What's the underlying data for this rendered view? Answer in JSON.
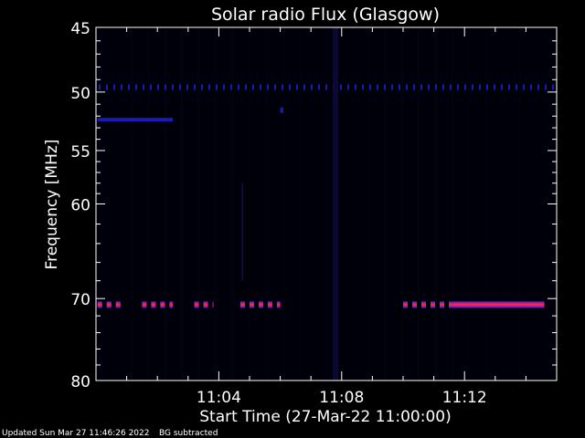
{
  "chart_data": {
    "type": "heatmap",
    "title": "Solar radio Flux (Glasgow)",
    "xlabel": "Start Time (27-Mar-22 11:00:00)",
    "ylabel": "Frequency [MHz]",
    "x_unit": "minutes after 11:00",
    "xlim": [
      0,
      15
    ],
    "ylim": [
      45,
      80
    ],
    "y_axis_inverted": true,
    "y_scale": "log",
    "x_ticks": [
      {
        "value": 4,
        "label": "11:04"
      },
      {
        "value": 8,
        "label": "11:08"
      },
      {
        "value": 12,
        "label": "11:12"
      }
    ],
    "y_ticks": [
      {
        "value": 45,
        "label": "45"
      },
      {
        "value": 50,
        "label": "50"
      },
      {
        "value": 55,
        "label": "55"
      },
      {
        "value": 60,
        "label": "60"
      },
      {
        "value": 70,
        "label": "70"
      },
      {
        "value": 80,
        "label": "80"
      }
    ],
    "colors": {
      "background": "#000000",
      "plot_background": "#00000a",
      "weak_signal": "#1a1ab4",
      "strong_signal": "#ff1e50",
      "signal_edge": "#6428c8",
      "axes": "#ffffff"
    },
    "features": [
      {
        "name": "dashed-line-49.6MHz",
        "freq": 49.6,
        "t_start": 0.0,
        "t_end": 15.0,
        "intensity": "low",
        "pattern": "dashed"
      },
      {
        "name": "band-52.3MHz",
        "freq": 52.3,
        "t_start": 0.05,
        "t_end": 2.5,
        "intensity": "medium",
        "pattern": "solid"
      },
      {
        "name": "dot-51.5MHz",
        "freq": 51.5,
        "t_start": 6.0,
        "t_end": 6.1,
        "intensity": "low",
        "pattern": "solid"
      },
      {
        "name": "vertical-streak-11:08",
        "t": 7.8,
        "f_start": 45.0,
        "f_end": 80.0,
        "intensity": "low",
        "pattern": "vertical"
      },
      {
        "name": "segment-70.7MHz-a",
        "freq": 70.7,
        "t_start": 0.05,
        "t_end": 0.8,
        "intensity": "high",
        "pattern": "dashed"
      },
      {
        "name": "segment-70.7MHz-b",
        "freq": 70.7,
        "t_start": 1.5,
        "t_end": 2.5,
        "intensity": "high",
        "pattern": "dashed"
      },
      {
        "name": "segment-70.7MHz-c",
        "freq": 70.7,
        "t_start": 3.2,
        "t_end": 3.8,
        "intensity": "high",
        "pattern": "dashed"
      },
      {
        "name": "segment-70.7MHz-d",
        "freq": 70.7,
        "t_start": 4.7,
        "t_end": 6.0,
        "intensity": "high",
        "pattern": "dashed"
      },
      {
        "name": "segment-70.7MHz-e",
        "freq": 70.7,
        "t_start": 10.0,
        "t_end": 11.6,
        "intensity": "high",
        "pattern": "dashed"
      },
      {
        "name": "segment-70.7MHz-f",
        "freq": 70.7,
        "t_start": 11.6,
        "t_end": 14.6,
        "intensity": "high",
        "pattern": "solid"
      }
    ]
  },
  "footer": {
    "updated": "Updated Sun Mar 27 11:46:26 2022",
    "bg_note": "BG subtracted"
  }
}
